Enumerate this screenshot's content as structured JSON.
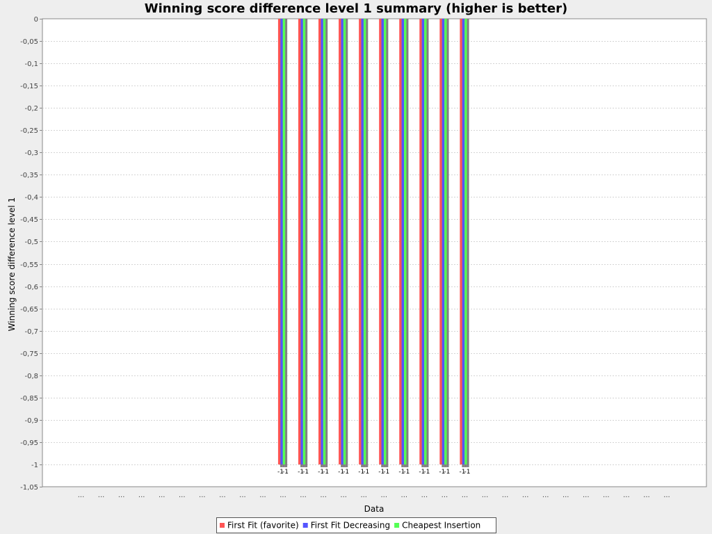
{
  "chart_data": {
    "type": "bar",
    "title": "Winning score difference level 1 summary (higher is better)",
    "xlabel": "Data",
    "ylabel": "Winning score difference level 1",
    "ylim": [
      -1.05,
      0
    ],
    "yticks": [
      0,
      -0.05,
      -0.1,
      -0.15,
      -0.2,
      -0.25,
      -0.3,
      -0.35,
      -0.4,
      -0.45,
      -0.5,
      -0.55,
      -0.6,
      -0.65,
      -0.7,
      -0.75,
      -0.8,
      -0.85,
      -0.9,
      -0.95,
      -1,
      -1.05
    ],
    "ytick_labels": [
      "0",
      "-0,05",
      "-0,1",
      "-0,15",
      "-0,2",
      "-0,25",
      "-0,3",
      "-0,35",
      "-0,4",
      "-0,45",
      "-0,5",
      "-0,55",
      "-0,6",
      "-0,65",
      "-0,7",
      "-0,75",
      "-0,8",
      "-0,85",
      "-0,9",
      "-0,95",
      "-1",
      "-1,05"
    ],
    "grid": true,
    "legend_position": "bottom",
    "categories": [
      "...",
      "...",
      "...",
      "...",
      "...",
      "...",
      "...",
      "...",
      "...",
      "...",
      "...",
      "...",
      "...",
      "...",
      "...",
      "...",
      "...",
      "...",
      "...",
      "...",
      "...",
      "...",
      "...",
      "...",
      "...",
      "...",
      "...",
      "...",
      "...",
      "..."
    ],
    "series": [
      {
        "name": "First Fit (favorite)",
        "color": "#ff5555",
        "values": [
          null,
          null,
          null,
          null,
          null,
          null,
          null,
          null,
          null,
          null,
          -1,
          -1,
          -1,
          -1,
          -1,
          -1,
          -1,
          -1,
          -1,
          -1,
          null,
          null,
          null,
          null,
          null,
          null,
          null,
          null,
          null,
          null
        ]
      },
      {
        "name": "First Fit Decreasing",
        "color": "#5555ff",
        "values": [
          null,
          null,
          null,
          null,
          null,
          null,
          null,
          null,
          null,
          null,
          -1,
          -1,
          -1,
          -1,
          -1,
          -1,
          -1,
          -1,
          -1,
          -1,
          null,
          null,
          null,
          null,
          null,
          null,
          null,
          null,
          null,
          null
        ]
      },
      {
        "name": "Cheapest Insertion",
        "color": "#55ff55",
        "values": [
          null,
          null,
          null,
          null,
          null,
          null,
          null,
          null,
          null,
          null,
          -1,
          -1,
          -1,
          -1,
          -1,
          -1,
          -1,
          -1,
          -1,
          -1,
          null,
          null,
          null,
          null,
          null,
          null,
          null,
          null,
          null,
          null
        ]
      }
    ],
    "data_labels": [
      "-1",
      "-1",
      "-1",
      "-1",
      "-1",
      "-1",
      "-1",
      "-1",
      "-1",
      "-1"
    ]
  }
}
